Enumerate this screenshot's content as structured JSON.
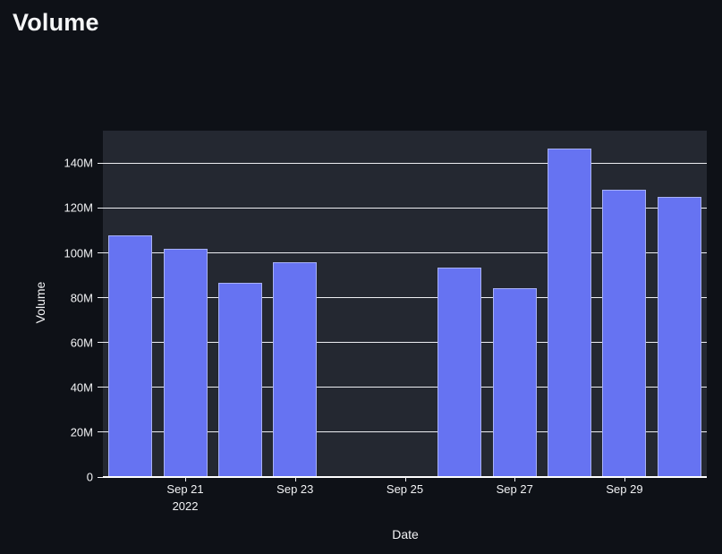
{
  "page": {
    "title": "Volume"
  },
  "colors": {
    "page_background": "#0e1117",
    "plot_background": "#242831",
    "bar_fill": "#6673f2",
    "bar_border": "rgba(222,227,248,0.55)",
    "gridline": "#edeef2",
    "zeroline": "#ffffff",
    "text": "#f2f3f5"
  },
  "chart_data": {
    "type": "bar",
    "title": "Volume",
    "xlabel": "Date",
    "ylabel": "Volume",
    "legend": false,
    "grid": true,
    "ylim": [
      0,
      154500000
    ],
    "x_slot_count": 11,
    "bar_width_ratio": 0.8,
    "y_ticks": [
      {
        "label": "0",
        "value": 0
      },
      {
        "label": "20M",
        "value": 20000000
      },
      {
        "label": "40M",
        "value": 40000000
      },
      {
        "label": "60M",
        "value": 60000000
      },
      {
        "label": "80M",
        "value": 80000000
      },
      {
        "label": "100M",
        "value": 100000000
      },
      {
        "label": "120M",
        "value": 120000000
      },
      {
        "label": "140M",
        "value": 140000000
      }
    ],
    "x_ticks": [
      {
        "label": "Sep 21",
        "sublabel": "2022",
        "slot": 1
      },
      {
        "label": "Sep 23",
        "sublabel": "",
        "slot": 3
      },
      {
        "label": "Sep 25",
        "sublabel": "",
        "slot": 5
      },
      {
        "label": "Sep 27",
        "sublabel": "",
        "slot": 7
      },
      {
        "label": "Sep 29",
        "sublabel": "",
        "slot": 9
      }
    ],
    "bars": [
      {
        "date": "Sep 20, 2022",
        "slot": 0,
        "value": 107700000
      },
      {
        "date": "Sep 21, 2022",
        "slot": 1,
        "value": 101700000
      },
      {
        "date": "Sep 22, 2022",
        "slot": 2,
        "value": 86700000
      },
      {
        "date": "Sep 23, 2022",
        "slot": 3,
        "value": 96000000
      },
      {
        "date": "Sep 26, 2022",
        "slot": 6,
        "value": 93300000
      },
      {
        "date": "Sep 27, 2022",
        "slot": 7,
        "value": 84400000
      },
      {
        "date": "Sep 28, 2022",
        "slot": 8,
        "value": 146700000
      },
      {
        "date": "Sep 29, 2022",
        "slot": 9,
        "value": 128100000
      },
      {
        "date": "Sep 30, 2022",
        "slot": 10,
        "value": 124900000
      }
    ]
  }
}
